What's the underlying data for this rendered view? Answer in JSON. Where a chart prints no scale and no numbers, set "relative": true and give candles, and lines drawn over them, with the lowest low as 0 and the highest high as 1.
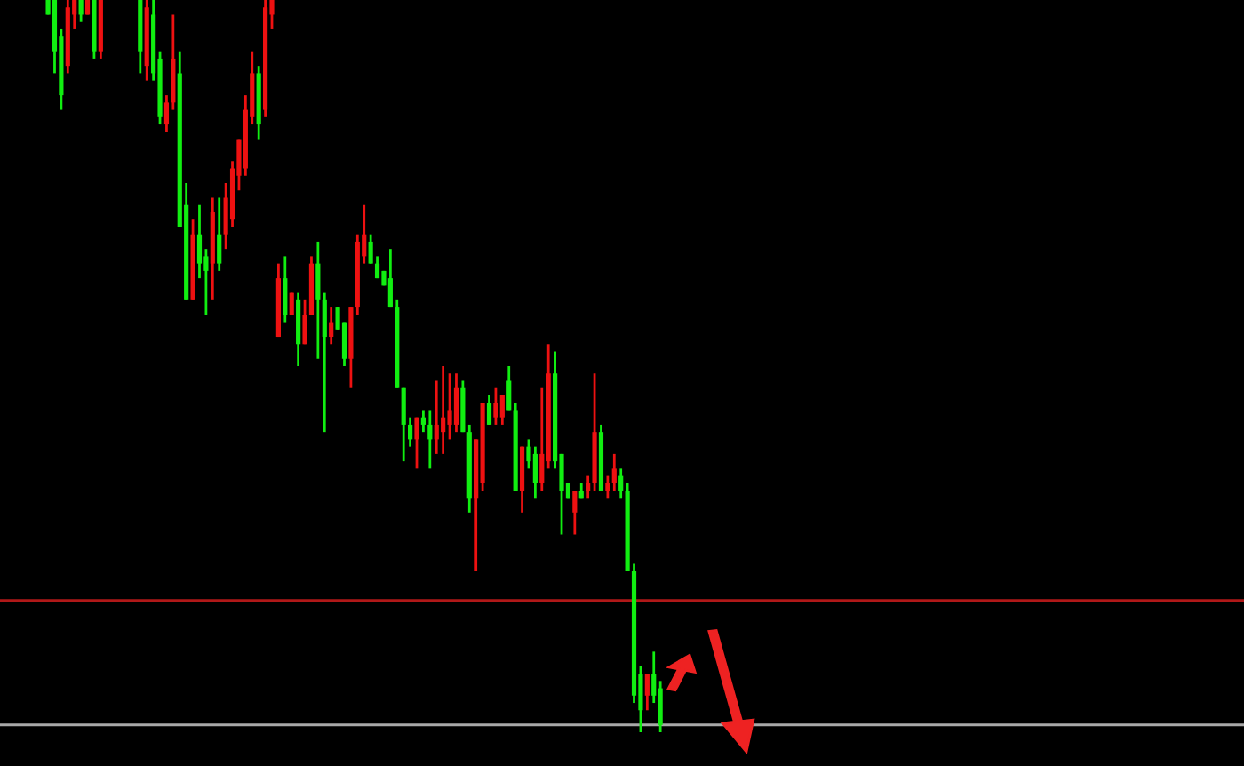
{
  "chart_data": {
    "type": "candlestick",
    "relative": true,
    "categories": [
      null,
      null,
      null,
      null,
      null,
      null,
      null,
      null,
      null,
      null,
      null,
      null,
      null,
      null,
      null,
      null,
      null,
      null,
      null,
      null,
      null,
      null,
      null,
      null,
      null,
      null,
      null,
      null,
      null,
      null,
      null,
      null,
      null,
      null,
      null,
      null,
      null,
      null,
      null,
      null,
      null,
      null,
      null,
      null,
      null,
      null,
      null,
      null,
      null,
      null,
      null,
      null,
      null,
      null,
      null,
      null,
      null,
      null,
      null,
      null,
      null,
      null,
      null,
      null,
      null,
      null,
      null,
      null,
      null,
      null,
      null,
      null,
      null,
      null,
      null,
      null,
      null,
      null,
      null,
      null,
      null,
      null,
      null,
      null,
      null,
      null,
      null,
      null,
      null,
      null,
      null,
      null,
      null,
      null
    ],
    "ohlc": [
      [
        1.0,
        1.0,
        0.98,
        0.98
      ],
      [
        1.0,
        1.0,
        0.9,
        0.93
      ],
      [
        0.95,
        0.96,
        0.85,
        0.87
      ],
      [
        0.91,
        1.0,
        0.9,
        0.99
      ],
      [
        0.98,
        1.0,
        0.96,
        1.0
      ],
      [
        1.0,
        1.0,
        0.97,
        0.98
      ],
      [
        0.98,
        1.0,
        0.98,
        1.0
      ],
      [
        1.0,
        1.0,
        0.92,
        0.93
      ],
      [
        0.93,
        1.0,
        0.92,
        1.0
      ],
      null,
      null,
      null,
      null,
      null,
      [
        1.0,
        1.0,
        0.9,
        0.93
      ],
      [
        0.91,
        1.0,
        0.89,
        0.99
      ],
      [
        0.98,
        1.0,
        0.89,
        0.9
      ],
      [
        0.92,
        0.93,
        0.83,
        0.84
      ],
      [
        0.83,
        0.87,
        0.82,
        0.86
      ],
      [
        0.86,
        0.98,
        0.85,
        0.92
      ],
      [
        0.9,
        0.93,
        0.69,
        0.69
      ],
      [
        0.72,
        0.75,
        0.59,
        0.59
      ],
      [
        0.59,
        0.7,
        0.59,
        0.68
      ],
      [
        0.68,
        0.72,
        0.62,
        0.64
      ],
      [
        0.65,
        0.66,
        0.57,
        0.63
      ],
      [
        0.64,
        0.73,
        0.59,
        0.71
      ],
      [
        0.68,
        0.73,
        0.63,
        0.64
      ],
      [
        0.68,
        0.75,
        0.66,
        0.73
      ],
      [
        0.7,
        0.78,
        0.69,
        0.77
      ],
      [
        0.76,
        0.81,
        0.74,
        0.81
      ],
      [
        0.77,
        0.87,
        0.76,
        0.85
      ],
      [
        0.84,
        0.93,
        0.83,
        0.9
      ],
      [
        0.9,
        0.91,
        0.81,
        0.83
      ],
      [
        0.85,
        1.0,
        0.84,
        0.99
      ],
      [
        0.98,
        1.0,
        0.96,
        1.0
      ],
      [
        0.54,
        0.64,
        0.54,
        0.62
      ],
      [
        0.62,
        0.65,
        0.56,
        0.57
      ],
      [
        0.57,
        0.6,
        0.57,
        0.6
      ],
      [
        0.59,
        0.6,
        0.5,
        0.53
      ],
      [
        0.53,
        0.59,
        0.53,
        0.57
      ],
      [
        0.57,
        0.65,
        0.57,
        0.64
      ],
      [
        0.64,
        0.67,
        0.51,
        0.59
      ],
      [
        0.59,
        0.6,
        0.41,
        0.54
      ],
      [
        0.54,
        0.58,
        0.53,
        0.56
      ],
      [
        0.58,
        0.58,
        0.55,
        0.55
      ],
      [
        0.56,
        0.56,
        0.5,
        0.51
      ],
      [
        0.51,
        0.58,
        0.47,
        0.58
      ],
      [
        0.58,
        0.68,
        0.57,
        0.67
      ],
      [
        0.65,
        0.72,
        0.64,
        0.68
      ],
      [
        0.67,
        0.68,
        0.64,
        0.64
      ],
      [
        0.64,
        0.65,
        0.62,
        0.62
      ],
      [
        0.63,
        0.63,
        0.61,
        0.61
      ],
      [
        0.62,
        0.66,
        0.58,
        0.58
      ],
      [
        0.58,
        0.59,
        0.47,
        0.47
      ],
      [
        0.47,
        0.47,
        0.37,
        0.42
      ],
      [
        0.42,
        0.43,
        0.39,
        0.4
      ],
      [
        0.4,
        0.43,
        0.36,
        0.43
      ],
      [
        0.43,
        0.44,
        0.41,
        0.42
      ],
      [
        0.42,
        0.44,
        0.36,
        0.4
      ],
      [
        0.4,
        0.48,
        0.38,
        0.42
      ],
      [
        0.41,
        0.5,
        0.38,
        0.43
      ],
      [
        0.42,
        0.49,
        0.4,
        0.44
      ],
      [
        0.42,
        0.49,
        0.41,
        0.47
      ],
      [
        0.47,
        0.48,
        0.41,
        0.41
      ],
      [
        0.41,
        0.42,
        0.3,
        0.32
      ],
      [
        0.32,
        0.4,
        0.22,
        0.4
      ],
      [
        0.34,
        0.45,
        0.33,
        0.45
      ],
      [
        0.45,
        0.46,
        0.42,
        0.42
      ],
      [
        0.43,
        0.47,
        0.42,
        0.45
      ],
      [
        0.43,
        0.46,
        0.42,
        0.46
      ],
      [
        0.48,
        0.5,
        0.44,
        0.44
      ],
      [
        0.44,
        0.45,
        0.33,
        0.33
      ],
      [
        0.33,
        0.39,
        0.3,
        0.39
      ],
      [
        0.39,
        0.4,
        0.36,
        0.37
      ],
      [
        0.38,
        0.39,
        0.32,
        0.34
      ],
      [
        0.34,
        0.47,
        0.33,
        0.38
      ],
      [
        0.37,
        0.53,
        0.36,
        0.49
      ],
      [
        0.49,
        0.52,
        0.36,
        0.37
      ],
      [
        0.38,
        0.38,
        0.27,
        0.33
      ],
      [
        0.34,
        0.34,
        0.32,
        0.32
      ],
      [
        0.3,
        0.33,
        0.27,
        0.33
      ],
      [
        0.33,
        0.34,
        0.32,
        0.32
      ],
      [
        0.33,
        0.35,
        0.32,
        0.34
      ],
      [
        0.34,
        0.49,
        0.33,
        0.41
      ],
      [
        0.41,
        0.42,
        0.33,
        0.33
      ],
      [
        0.33,
        0.35,
        0.32,
        0.34
      ],
      [
        0.34,
        0.38,
        0.33,
        0.36
      ],
      [
        0.35,
        0.36,
        0.32,
        0.33
      ],
      [
        0.33,
        0.34,
        0.22,
        0.22
      ],
      [
        0.22,
        0.23,
        0.04,
        0.05
      ],
      [
        0.08,
        0.09,
        0.0,
        0.03
      ],
      [
        0.05,
        0.08,
        0.03,
        0.08
      ],
      [
        0.08,
        0.11,
        0.04,
        0.05
      ],
      [
        0.06,
        0.07,
        0.0,
        0.01
      ]
    ],
    "colors": [
      "#11ee11",
      "#11ee11",
      "#11ee11",
      "#ee1111",
      "#ee1111",
      "#11ee11",
      "#ee1111",
      "#11ee11",
      "#ee1111",
      null,
      null,
      null,
      null,
      null,
      "#11ee11",
      "#ee1111",
      "#11ee11",
      "#11ee11",
      "#ee1111",
      "#ee1111",
      "#11ee11",
      "#11ee11",
      "#ee1111",
      "#11ee11",
      "#11ee11",
      "#ee1111",
      "#11ee11",
      "#ee1111",
      "#ee1111",
      "#ee1111",
      "#ee1111",
      "#ee1111",
      "#11ee11",
      "#ee1111",
      "#ee1111",
      "#ee1111",
      "#11ee11",
      "#ee1111",
      "#11ee11",
      "#ee1111",
      "#ee1111",
      "#11ee11",
      "#11ee11",
      "#ee1111",
      "#11ee11",
      "#11ee11",
      "#ee1111",
      "#ee1111",
      "#ee1111",
      "#11ee11",
      "#11ee11",
      "#11ee11",
      "#11ee11",
      "#11ee11",
      "#11ee11",
      "#11ee11",
      "#ee1111",
      "#11ee11",
      "#11ee11",
      "#ee1111",
      "#ee1111",
      "#ee1111",
      "#ee1111",
      "#11ee11",
      "#11ee11",
      "#ee1111",
      "#ee1111",
      "#11ee11",
      "#ee1111",
      "#ee1111",
      "#11ee11",
      "#11ee11",
      "#ee1111",
      "#11ee11",
      "#11ee11",
      "#ee1111",
      "#ee1111",
      "#11ee11",
      "#11ee11",
      "#11ee11",
      "#ee1111",
      "#11ee11",
      "#ee1111",
      "#ee1111",
      "#11ee11",
      "#ee1111",
      "#ee1111",
      "#11ee11",
      "#11ee11",
      "#11ee11",
      "#11ee11",
      "#ee1111",
      "#11ee11",
      "#11ee11"
    ],
    "ref_lines": [
      {
        "axis": "y",
        "value": 0.18,
        "color": "#b01818",
        "line_style": "solid"
      },
      {
        "axis": "y",
        "value": 0.01,
        "color": "#a8a8a8",
        "line_style": "solid"
      }
    ],
    "grid": false,
    "legend": false
  }
}
